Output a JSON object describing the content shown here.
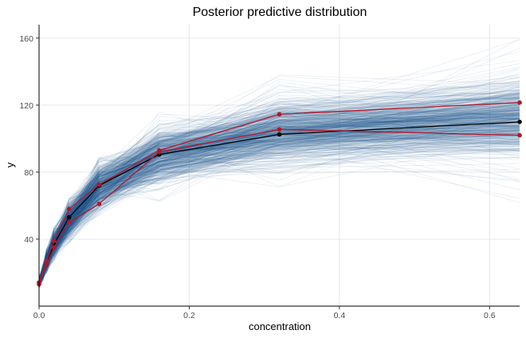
{
  "chart_data": {
    "type": "line",
    "title": "Posterior predictive distribution",
    "xlabel": "concentration",
    "ylabel": "y",
    "xlim": [
      0,
      0.64
    ],
    "ylim": [
      0,
      168
    ],
    "x_ticks": [
      0.0,
      0.2,
      0.4,
      0.6
    ],
    "x_tick_labels": [
      "0.0",
      "0.2",
      "0.4",
      "0.6"
    ],
    "y_ticks": [
      40,
      80,
      120,
      160
    ],
    "y_tick_labels": [
      "40",
      "80",
      "120",
      "160"
    ],
    "grid": true,
    "colors": {
      "posterior_draws": "#1f5e94",
      "black_series": "#000000",
      "red_series": "#b2182b",
      "grid": "#e8e8e8"
    },
    "posterior_draws": {
      "x": [
        0,
        0.005,
        0.01,
        0.02,
        0.04,
        0.08,
        0.16,
        0.32,
        0.64
      ],
      "median": [
        14,
        20,
        27,
        37,
        51,
        71,
        90,
        104,
        112
      ],
      "spread": [
        1.5,
        2,
        3,
        4,
        5,
        6.5,
        7.5,
        9,
        11
      ],
      "outer_lower": [
        10,
        15,
        20,
        27,
        38,
        53,
        62,
        70,
        60
      ],
      "outer_upper": [
        18,
        25,
        34,
        47,
        65,
        90,
        118,
        140,
        166
      ],
      "n_draws": 600
    },
    "series": [
      {
        "color": "#000000",
        "x": [
          0,
          0.01,
          0.02,
          0.04,
          0.08,
          0.16,
          0.32,
          0.64
        ],
        "values": [
          14,
          25,
          37,
          53,
          72,
          90.5,
          102.5,
          110
        ]
      },
      {
        "color": "#b2182b",
        "x": [
          0,
          0.01,
          0.02,
          0.04,
          0.08,
          0.16,
          0.32,
          0.64
        ],
        "values": [
          14,
          27,
          39,
          58,
          72.5,
          93,
          114.5,
          121.5
        ]
      },
      {
        "color": "#b2182b",
        "x": [
          0,
          0.01,
          0.02,
          0.04,
          0.08,
          0.16,
          0.32,
          0.64
        ],
        "values": [
          13,
          25,
          35,
          50,
          61,
          92,
          105.5,
          102
        ]
      }
    ]
  }
}
